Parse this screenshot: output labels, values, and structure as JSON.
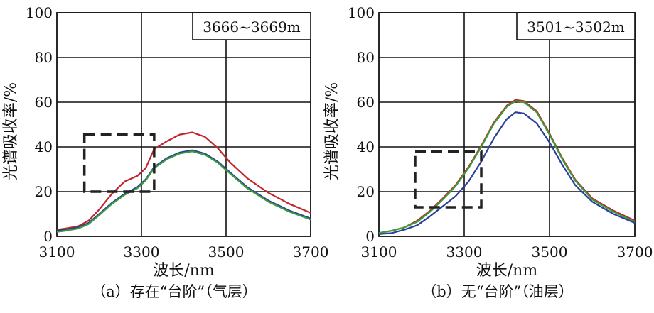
{
  "chart_data": [
    {
      "type": "line",
      "caption": "（a）存在“台阶”（气层）",
      "annotation": "3666~3669m",
      "xlabel": "波长/nm",
      "ylabel": "光谱吸收率/%",
      "xlim": [
        3100,
        3700
      ],
      "ylim": [
        0,
        100
      ],
      "xticks": [
        3100,
        3300,
        3500,
        3700
      ],
      "yticks": [
        0,
        20,
        40,
        60,
        80,
        100
      ],
      "grid": true,
      "highlight_box": {
        "x": [
          3165,
          3330
        ],
        "y": [
          20,
          45.5
        ]
      },
      "series": [
        {
          "color": "#c0262b",
          "x": [
            3100,
            3120,
            3150,
            3175,
            3200,
            3230,
            3260,
            3290,
            3310,
            3330,
            3360,
            3390,
            3420,
            3450,
            3480,
            3510,
            3550,
            3600,
            3650,
            3700
          ],
          "y": [
            3,
            3.5,
            4.5,
            7,
            12,
            19,
            24.5,
            27,
            30.5,
            39,
            42.5,
            45.5,
            46.5,
            44.5,
            39.5,
            33,
            26,
            19.5,
            14.5,
            10.5
          ]
        },
        {
          "color": "#2a3f9c",
          "x": [
            3100,
            3120,
            3150,
            3175,
            3200,
            3230,
            3260,
            3290,
            3310,
            3330,
            3360,
            3390,
            3420,
            3450,
            3480,
            3510,
            3550,
            3600,
            3650,
            3700
          ],
          "y": [
            2.5,
            3,
            4,
            6,
            10,
            15,
            19,
            22,
            25.5,
            31,
            35,
            37.5,
            38.5,
            37,
            33.5,
            28.5,
            22,
            16,
            11.5,
            8
          ]
        },
        {
          "color": "#3b9c3a",
          "x": [
            3100,
            3120,
            3150,
            3175,
            3200,
            3230,
            3260,
            3290,
            3310,
            3330,
            3360,
            3390,
            3420,
            3450,
            3480,
            3510,
            3550,
            3600,
            3650,
            3700
          ],
          "y": [
            2,
            2.5,
            3.5,
            5.5,
            9.5,
            14.5,
            18.5,
            21.5,
            25,
            30.5,
            34.5,
            37,
            38,
            36.5,
            33,
            28,
            21.5,
            15.5,
            11,
            7.5
          ]
        }
      ]
    },
    {
      "type": "line",
      "caption": "（b）无“台阶”（油层）",
      "annotation": "3501~3502m",
      "xlabel": "波长/nm",
      "ylabel": "光谱吸收率/%",
      "xlim": [
        3100,
        3700
      ],
      "ylim": [
        0,
        100
      ],
      "xticks": [
        3100,
        3300,
        3500,
        3700
      ],
      "yticks": [
        0,
        20,
        40,
        60,
        80,
        100
      ],
      "grid": true,
      "highlight_box": {
        "x": [
          3185,
          3340
        ],
        "y": [
          13,
          38
        ]
      },
      "series": [
        {
          "color": "#c0262b",
          "x": [
            3100,
            3130,
            3160,
            3190,
            3220,
            3250,
            3280,
            3310,
            3340,
            3370,
            3400,
            3420,
            3440,
            3470,
            3500,
            3530,
            3560,
            3600,
            3650,
            3700
          ],
          "y": [
            1.5,
            2.5,
            4,
            7,
            11.5,
            17,
            23,
            31,
            40.5,
            51,
            58.5,
            61,
            60.5,
            56,
            46,
            35,
            25.5,
            17,
            11.5,
            7
          ]
        },
        {
          "color": "#3b9c3a",
          "x": [
            3100,
            3130,
            3160,
            3190,
            3220,
            3250,
            3280,
            3310,
            3340,
            3370,
            3400,
            3420,
            3440,
            3470,
            3500,
            3530,
            3560,
            3600,
            3650,
            3700
          ],
          "y": [
            1.5,
            2.5,
            4,
            6.5,
            11,
            16.5,
            22.5,
            30.5,
            40,
            50.5,
            58,
            60.5,
            60,
            55.5,
            45.5,
            34.5,
            25,
            16.5,
            11,
            6.5
          ]
        },
        {
          "color": "#2a3f9c",
          "x": [
            3100,
            3130,
            3160,
            3190,
            3220,
            3250,
            3280,
            3310,
            3340,
            3370,
            3400,
            3420,
            3440,
            3470,
            3500,
            3530,
            3560,
            3600,
            3650,
            3700
          ],
          "y": [
            1,
            1.5,
            3,
            5,
            9,
            13.5,
            18,
            24.5,
            33.5,
            44,
            52.5,
            55.5,
            55,
            50.5,
            42,
            32,
            23,
            15.5,
            10,
            6
          ]
        }
      ]
    }
  ]
}
